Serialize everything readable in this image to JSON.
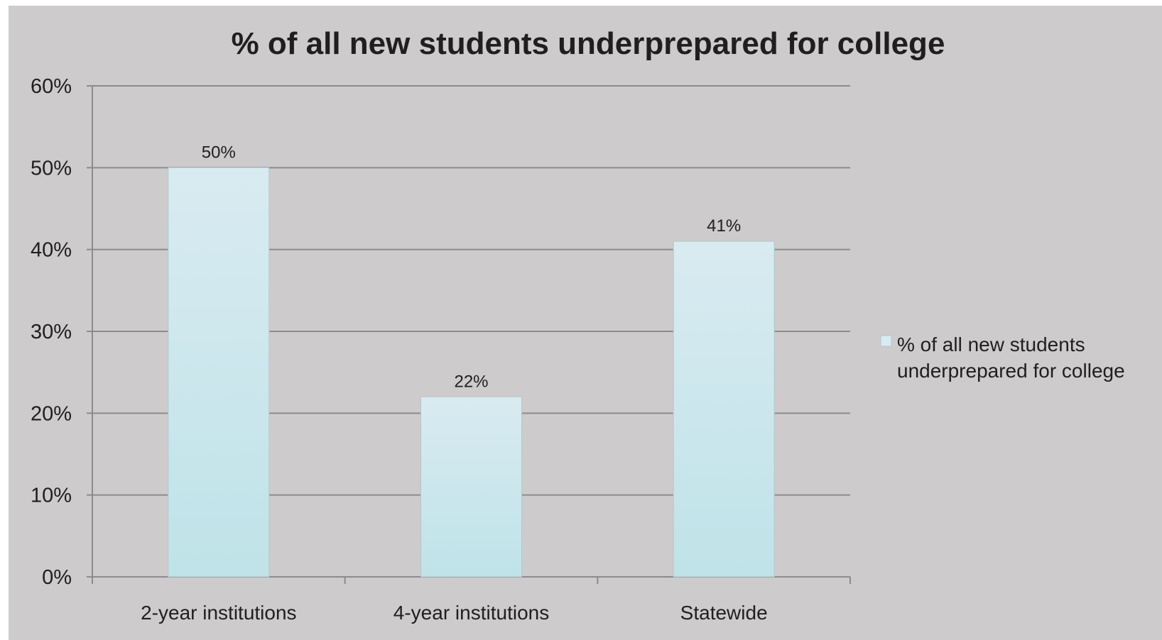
{
  "chart_data": {
    "type": "bar",
    "title": "% of all new students underprepared for college",
    "xlabel": "",
    "ylabel": "",
    "categories": [
      "2-year institutions",
      "4-year institutions",
      "Statewide"
    ],
    "series": [
      {
        "name": "% of all new students underprepared for college",
        "values": [
          50,
          22,
          41
        ],
        "data_labels": [
          "50%",
          "22%",
          "41%"
        ]
      }
    ],
    "ylim": [
      0,
      60
    ],
    "yticks": [
      0,
      10,
      20,
      30,
      40,
      50,
      60
    ],
    "ytick_labels": [
      "0%",
      "10%",
      "20%",
      "30%",
      "40%",
      "50%",
      "60%"
    ],
    "grid": true,
    "legend_position": "right",
    "colors": {
      "bar_top": "#d8ebf1",
      "bar_bottom": "#bfe3e8",
      "background": "#cdcbcc",
      "gridline": "#8c8c8c"
    }
  }
}
